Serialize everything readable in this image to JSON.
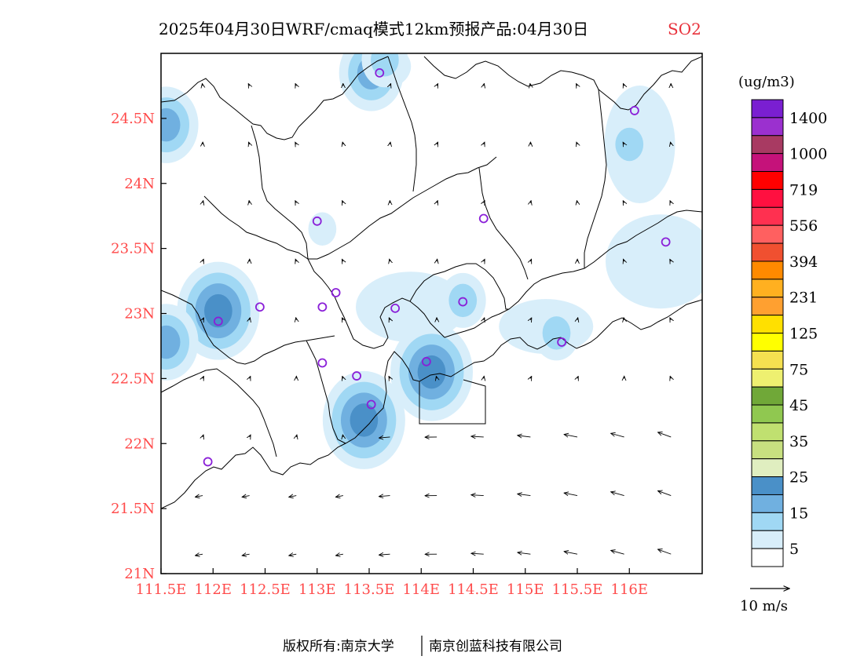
{
  "header": {
    "title": "2025年04月30日WRF/cmaq模式12km预报产品:04月30日",
    "species": "SO2",
    "species_color": "#e8303a"
  },
  "axes": {
    "lon_ticks": [
      "111.5E",
      "112E",
      "112.5E",
      "113E",
      "113.5E",
      "114E",
      "114.5E",
      "115E",
      "115.5E",
      "116E"
    ],
    "lat_ticks": [
      "21N",
      "21.5N",
      "22N",
      "22.5N",
      "23N",
      "23.5N",
      "24N",
      "24.5N"
    ],
    "lon_values": [
      111.5,
      112,
      112.5,
      113,
      113.5,
      114,
      114.5,
      115,
      115.5,
      116
    ],
    "lat_values": [
      21,
      21.5,
      22,
      22.5,
      23,
      23.5,
      24,
      24.5
    ],
    "lon_range": [
      111.5,
      116.7
    ],
    "lat_range": [
      21,
      25
    ],
    "tick_color": "#ff4a4a"
  },
  "colorbar": {
    "unit": "(ug/m3)",
    "labels": [
      "1400",
      "1000",
      "719",
      "556",
      "394",
      "231",
      "125",
      "75",
      "45",
      "35",
      "25",
      "15",
      "5"
    ],
    "colors": [
      "#7a1fd1",
      "#9b30cf",
      "#a83a62",
      "#c5127a",
      "#ff0000",
      "#ff1040",
      "#ff3050",
      "#ff6060",
      "#f05030",
      "#ff8a00",
      "#ffb020",
      "#ffa030",
      "#ffe000",
      "#ffff00",
      "#f5e050",
      "#eef070",
      "#70a838",
      "#90c850",
      "#c0e070",
      "#c8e080",
      "#e0eec0",
      "#4a90c8",
      "#70b0e0",
      "#a0d8f4",
      "#d8eefa",
      "#ffffff"
    ]
  },
  "wind_legend": {
    "label": "10 m/s"
  },
  "footer": {
    "left": "版权所有:南京大学",
    "right": "南京创蓝科技有限公司"
  },
  "stations": [
    {
      "lon": 113.6,
      "lat": 24.85
    },
    {
      "lon": 116.05,
      "lat": 24.56
    },
    {
      "lon": 113.0,
      "lat": 23.71
    },
    {
      "lon": 114.6,
      "lat": 23.73
    },
    {
      "lon": 116.35,
      "lat": 23.55
    },
    {
      "lon": 112.45,
      "lat": 23.05
    },
    {
      "lon": 113.05,
      "lat": 23.05
    },
    {
      "lon": 113.18,
      "lat": 23.16
    },
    {
      "lon": 113.75,
      "lat": 23.04
    },
    {
      "lon": 114.4,
      "lat": 23.09
    },
    {
      "lon": 112.05,
      "lat": 22.94
    },
    {
      "lon": 113.05,
      "lat": 22.62
    },
    {
      "lon": 113.38,
      "lat": 22.52
    },
    {
      "lon": 114.05,
      "lat": 22.63
    },
    {
      "lon": 115.35,
      "lat": 22.78
    },
    {
      "lon": 113.52,
      "lat": 22.3
    },
    {
      "lon": 111.95,
      "lat": 21.86
    }
  ],
  "hotspots": [
    {
      "lon": 113.52,
      "lat": 24.85,
      "level": 3
    },
    {
      "lon": 111.55,
      "lat": 24.45,
      "level": 3
    },
    {
      "lon": 112.05,
      "lat": 23.02,
      "level": 4
    },
    {
      "lon": 111.55,
      "lat": 22.78,
      "level": 3
    },
    {
      "lon": 113.45,
      "lat": 22.18,
      "level": 4
    },
    {
      "lon": 114.1,
      "lat": 22.55,
      "level": 4
    },
    {
      "lon": 114.4,
      "lat": 23.1,
      "level": 2
    },
    {
      "lon": 116.0,
      "lat": 24.3,
      "level": 2
    },
    {
      "lon": 115.3,
      "lat": 22.85,
      "level": 2
    },
    {
      "lon": 113.05,
      "lat": 23.65,
      "level": 1
    },
    {
      "lon": 116.35,
      "lat": 23.3,
      "level": 1
    },
    {
      "lon": 113.65,
      "lat": 24.95,
      "level": 2
    }
  ]
}
